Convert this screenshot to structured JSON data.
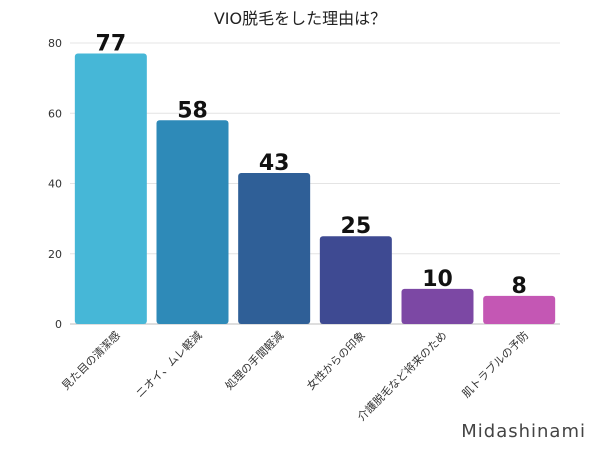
{
  "chart_data": {
    "type": "bar",
    "title": "VIO脱毛をした理由は？",
    "xlabel": "",
    "ylabel": "",
    "ylim": [
      0,
      80
    ],
    "yticks": [
      0,
      20,
      40,
      60,
      80
    ],
    "grid": true,
    "legend": "none",
    "categories": [
      "見た目の清潔感",
      "ニオイ、ムレ軽減",
      "処理の手間軽減",
      "女性からの印象",
      "介護脱毛など将来のため",
      "肌トラブルの予防"
    ],
    "values": [
      77,
      58,
      43,
      25,
      10,
      8
    ],
    "colors": [
      "#46b7d7",
      "#2e8ab8",
      "#2f5f97",
      "#3e4a92",
      "#7c48a4",
      "#c457b4"
    ]
  },
  "watermark": "Midashinami"
}
